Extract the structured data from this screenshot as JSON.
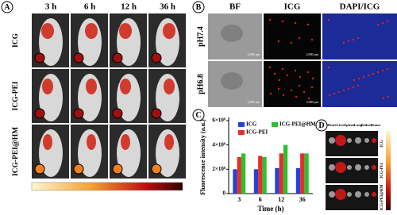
{
  "panel_a": {
    "label": "A",
    "columns": [
      "3 h",
      "6 h",
      "12 h",
      "36 h"
    ],
    "rows": [
      "ICG",
      "ICG-PEI",
      "ICG-PEI@HM"
    ]
  },
  "panel_b": {
    "label": "B",
    "columns": [
      "BF",
      "ICG",
      "DAPI/ICG"
    ],
    "rows": [
      "pH7.4",
      "pH6.8"
    ],
    "scale_bar": "2,000 µm"
  },
  "chart_data": {
    "type": "bar",
    "label": "C",
    "x_label": "Time (h)",
    "y_label": "Fluorescence intensity (a.u.)",
    "categories": [
      "3",
      "6",
      "12",
      "36"
    ],
    "series": [
      {
        "name": "ICG",
        "color": "#2443d6",
        "values": [
          200000000,
          200000000,
          210000000,
          210000000
        ]
      },
      {
        "name": "ICG-PEI",
        "color": "#e2302a",
        "values": [
          300000000,
          310000000,
          330000000,
          330000000
        ]
      },
      {
        "name": "ICG-PEI@HM",
        "color": "#2fbf2f",
        "values": [
          330000000,
          300000000,
          400000000,
          330000000
        ]
      }
    ],
    "ylim": [
      0,
      600000000
    ],
    "yticks": [
      0,
      {
        "value": 200000000,
        "label": "2×10⁸"
      },
      {
        "value": 400000000,
        "label": "4×10⁸"
      },
      {
        "value": 600000000,
        "label": "6×10⁸"
      }
    ]
  },
  "panel_d": {
    "label": "D",
    "columns": [
      "Heart",
      "Liver",
      "Spleen",
      "Lung",
      "Kidney",
      "Tumor"
    ],
    "rows": [
      "ICG",
      "ICG-PEI",
      "ICG-PEI@HM"
    ]
  }
}
